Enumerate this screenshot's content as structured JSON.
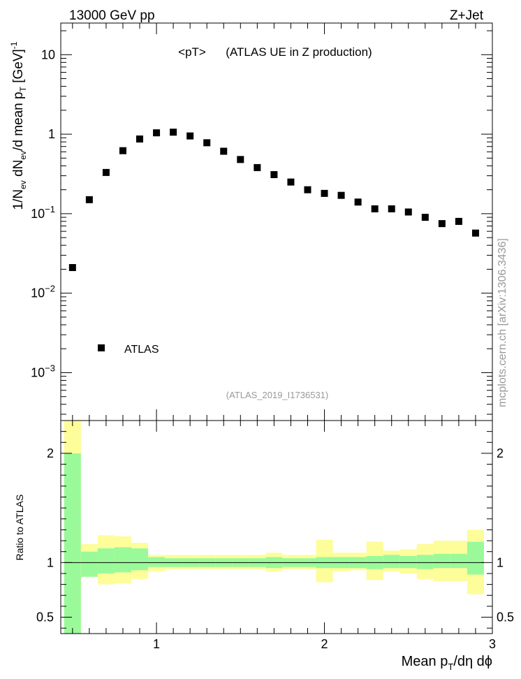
{
  "header": {
    "left": "13000 GeV pp",
    "right": "Z+Jet"
  },
  "watermark": "mcplots.cern.ch [arXiv:1306.3436]",
  "analysis_label": "(ATLAS_2019_I1736531)",
  "colors": {
    "data": "#000000",
    "band_inner": "#9afa9a",
    "band_outer": "#fdfd9a",
    "analysis_label": "#999999"
  },
  "chart_data": [
    {
      "type": "scatter",
      "title": "<pT>",
      "subtitle": "(ATLAS UE in Z production)",
      "ylabel": "1/N_ev dN_ev/d mean p_T [GeV]^-1",
      "xlabel": "",
      "log_y": true,
      "xlim": [
        0.43,
        3.0
      ],
      "ylim": [
        0.00025,
        25
      ],
      "y_ticks": [
        {
          "value": 0.001,
          "label": "10^-3"
        },
        {
          "value": 0.01,
          "label": "10^-2"
        },
        {
          "value": 0.1,
          "label": "10^-1"
        },
        {
          "value": 1,
          "label": "1"
        },
        {
          "value": 10,
          "label": "10"
        }
      ],
      "legend": {
        "placement": "bottom-left",
        "entries": [
          "ATLAS"
        ]
      },
      "series": [
        {
          "name": "ATLAS",
          "x": [
            0.5,
            0.6,
            0.7,
            0.8,
            0.9,
            1.0,
            1.1,
            1.2,
            1.3,
            1.4,
            1.5,
            1.6,
            1.7,
            1.8,
            1.9,
            2.0,
            2.1,
            2.2,
            2.3,
            2.4,
            2.5,
            2.6,
            2.7,
            2.8,
            2.9
          ],
          "y": [
            0.021,
            0.15,
            0.33,
            0.62,
            0.87,
            1.04,
            1.06,
            0.95,
            0.78,
            0.61,
            0.48,
            0.38,
            0.31,
            0.25,
            0.2,
            0.18,
            0.17,
            0.14,
            0.115,
            0.115,
            0.105,
            0.09,
            0.075,
            0.08,
            0.057
          ]
        }
      ]
    },
    {
      "type": "area",
      "title": "",
      "ylabel": "Ratio to ATLAS",
      "xlabel": "Mean p_T/dη dϕ",
      "xlim": [
        0.43,
        3.0
      ],
      "ylim": [
        0.35,
        2.3
      ],
      "x_ticks": [
        1,
        2,
        3
      ],
      "y_ticks": [
        0.5,
        1,
        2
      ],
      "bin_edges": [
        0.45,
        0.55,
        0.65,
        0.75,
        0.85,
        0.95,
        1.05,
        1.15,
        1.25,
        1.35,
        1.45,
        1.55,
        1.65,
        1.75,
        1.85,
        1.95,
        2.05,
        2.15,
        2.25,
        2.35,
        2.45,
        2.55,
        2.65,
        2.75,
        2.85,
        2.95
      ],
      "reference": 1,
      "inner_band": {
        "lo": [
          0.0,
          0.87,
          0.9,
          0.91,
          0.93,
          0.96,
          0.96,
          0.96,
          0.96,
          0.96,
          0.96,
          0.96,
          0.95,
          0.96,
          0.96,
          0.95,
          0.95,
          0.95,
          0.94,
          0.95,
          0.95,
          0.94,
          0.95,
          0.95,
          0.89
        ],
        "hi": [
          2.0,
          1.1,
          1.13,
          1.14,
          1.13,
          1.05,
          1.04,
          1.04,
          1.04,
          1.04,
          1.04,
          1.04,
          1.05,
          1.04,
          1.04,
          1.05,
          1.05,
          1.05,
          1.06,
          1.07,
          1.06,
          1.07,
          1.08,
          1.08,
          1.19
        ]
      },
      "outer_band": {
        "lo": [
          0.0,
          0.87,
          0.8,
          0.81,
          0.85,
          0.92,
          0.94,
          0.94,
          0.94,
          0.94,
          0.94,
          0.94,
          0.92,
          0.94,
          0.94,
          0.82,
          0.92,
          0.93,
          0.84,
          0.92,
          0.9,
          0.85,
          0.83,
          0.83,
          0.71
        ],
        "hi": [
          2.3,
          1.17,
          1.25,
          1.24,
          1.18,
          1.07,
          1.07,
          1.07,
          1.07,
          1.07,
          1.07,
          1.07,
          1.09,
          1.07,
          1.07,
          1.21,
          1.09,
          1.09,
          1.19,
          1.11,
          1.12,
          1.17,
          1.2,
          1.2,
          1.3
        ]
      }
    }
  ]
}
